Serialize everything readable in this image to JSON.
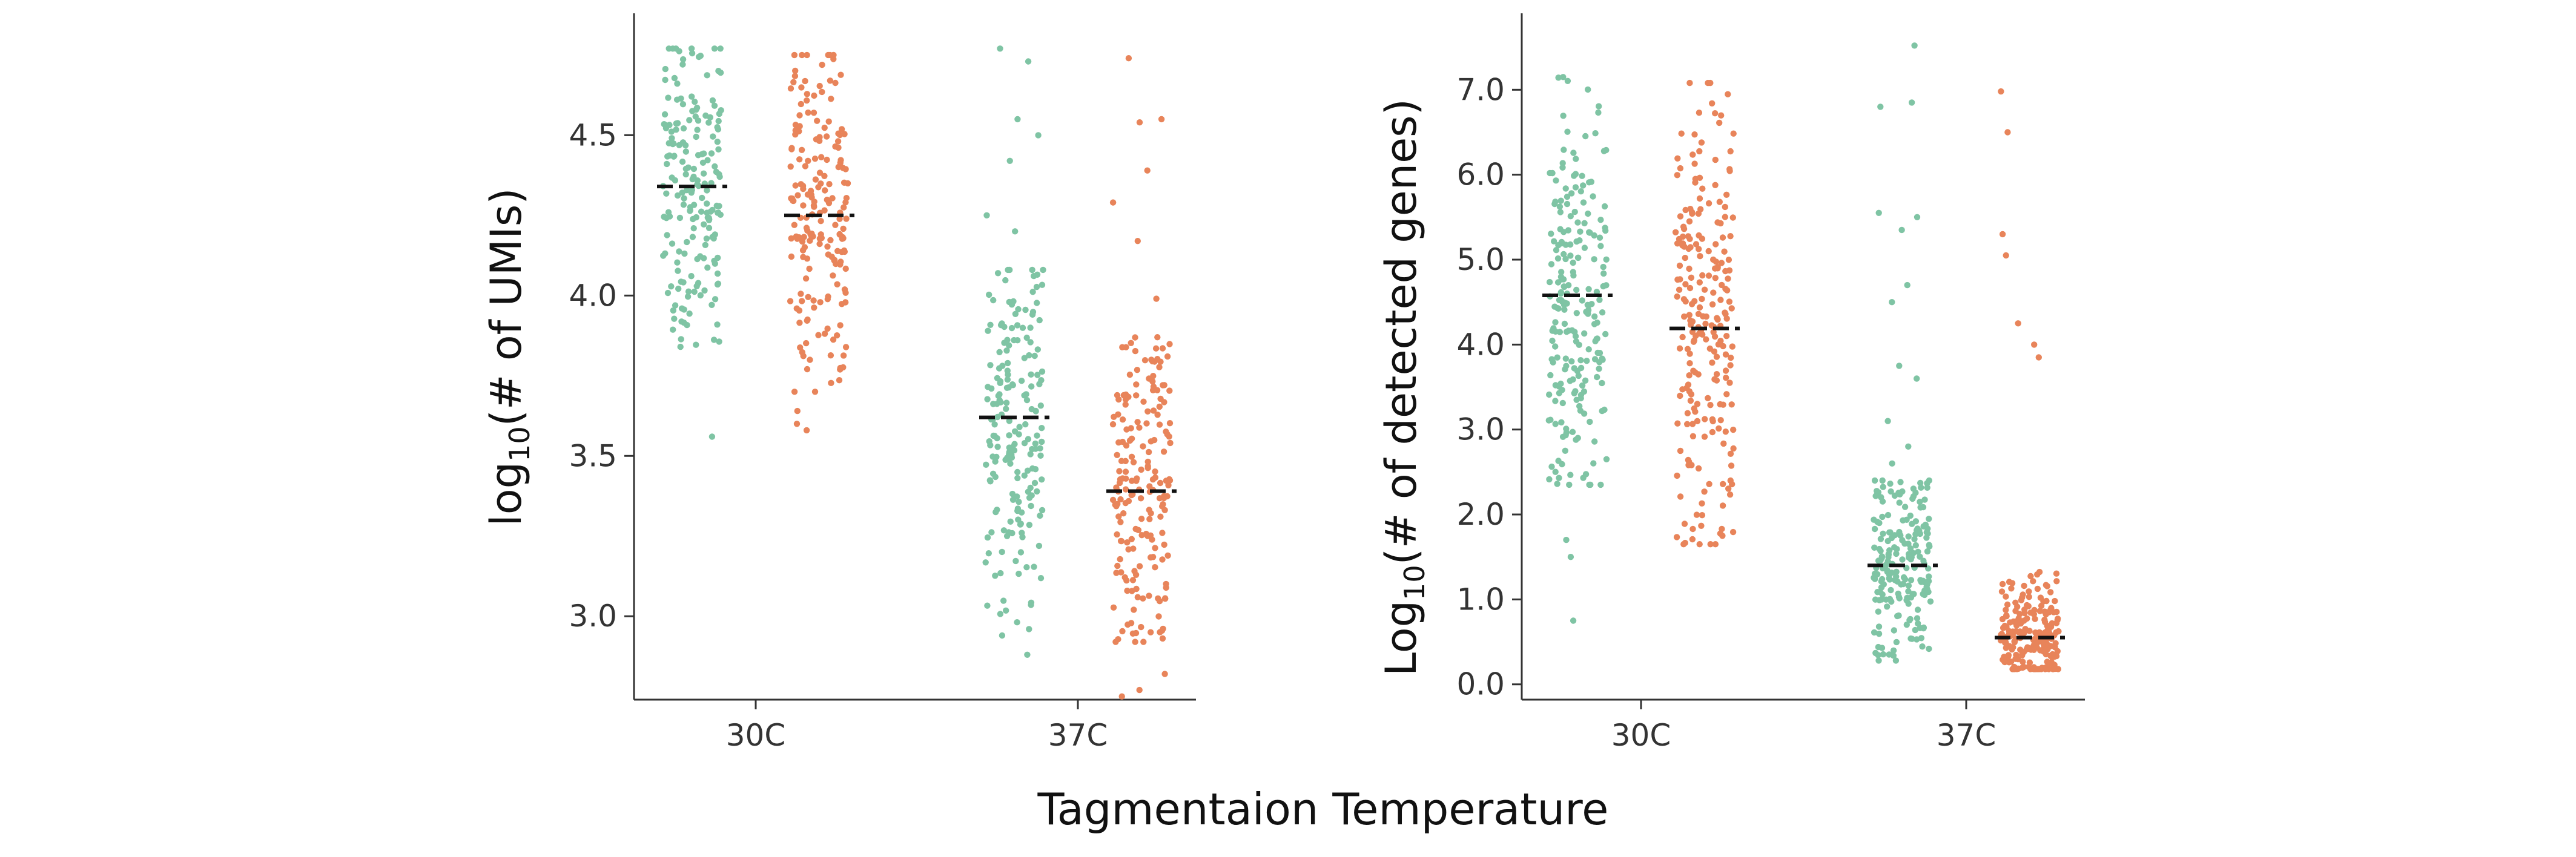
{
  "figure": {
    "xlabel": "Tagmentaion Temperature"
  },
  "colors": {
    "green": "#7fc4a4",
    "orange": "#e8845a",
    "median": "#111111",
    "axis": "#333333"
  },
  "chart_data": [
    {
      "type": "scatter",
      "subtype": "jitter-strip",
      "title": "",
      "ylabel": {
        "prefix": "log",
        "sub": "10",
        "suffix": "(# of UMIs)"
      },
      "ylim": [
        2.74,
        4.88
      ],
      "yticks": [
        3.0,
        3.5,
        4.0,
        4.5
      ],
      "ytick_labels": [
        "3.0",
        "3.5",
        "4.0",
        "4.5"
      ],
      "categories": [
        "30C",
        "37C"
      ],
      "groups": [
        {
          "category": "30C",
          "color": "green",
          "median": 4.34,
          "n": 190,
          "low": 3.84,
          "high": 4.77,
          "mid_low": 4.1,
          "mid_high": 4.55,
          "outliers_low": [
            3.56
          ]
        },
        {
          "category": "30C",
          "color": "orange",
          "median": 4.25,
          "n": 190,
          "low": 3.7,
          "high": 4.75,
          "mid_low": 4.0,
          "mid_high": 4.48,
          "outliers_low": [
            3.58,
            3.6,
            3.64
          ]
        },
        {
          "category": "37C",
          "color": "green",
          "median": 3.62,
          "n": 190,
          "low": 2.96,
          "high": 4.08,
          "mid_low": 3.4,
          "mid_high": 3.85,
          "outliers_low": [
            2.88,
            2.94
          ],
          "outliers_high": [
            4.2,
            4.25,
            4.42,
            4.5,
            4.55,
            4.73,
            4.77
          ]
        },
        {
          "category": "37C",
          "color": "orange",
          "median": 3.39,
          "n": 190,
          "low": 2.92,
          "high": 3.87,
          "mid_low": 3.18,
          "mid_high": 3.62,
          "outliers_low": [
            2.75,
            2.77,
            2.82
          ],
          "outliers_high": [
            3.99,
            4.17,
            4.29,
            4.39,
            4.54,
            4.55,
            4.74
          ]
        }
      ]
    },
    {
      "type": "scatter",
      "subtype": "jitter-strip",
      "title": "",
      "ylabel": {
        "prefix": "Log",
        "sub": "10",
        "suffix": "(# of detected genes)"
      },
      "ylim": [
        -0.18,
        7.9
      ],
      "yticks": [
        0.0,
        1.0,
        2.0,
        3.0,
        4.0,
        5.0,
        6.0,
        7.0
      ],
      "ytick_labels": [
        "0.0",
        "1.0",
        "2.0",
        "3.0",
        "4.0",
        "5.0",
        "6.0",
        "7.0"
      ],
      "categories": [
        "30C",
        "37C"
      ],
      "groups": [
        {
          "category": "30C",
          "color": "green",
          "median": 4.58,
          "n": 220,
          "low": 2.35,
          "high": 7.15,
          "mid_low": 3.6,
          "mid_high": 5.5,
          "outliers_low": [
            0.75,
            1.5,
            1.7
          ]
        },
        {
          "category": "30C",
          "color": "orange",
          "median": 4.19,
          "n": 230,
          "low": 1.65,
          "high": 7.08,
          "mid_low": 3.1,
          "mid_high": 5.3,
          "outliers_low": []
        },
        {
          "category": "37C",
          "color": "green",
          "median": 1.4,
          "n": 200,
          "low": 0.28,
          "high": 2.4,
          "mid_low": 0.9,
          "mid_high": 1.85,
          "outliers_high": [
            2.6,
            2.8,
            3.1,
            3.6,
            3.75,
            4.5,
            4.7,
            5.35,
            5.5,
            5.55,
            6.8,
            6.85,
            7.52
          ]
        },
        {
          "category": "37C",
          "color": "orange",
          "median": 0.55,
          "n": 210,
          "low": 0.18,
          "high": 1.35,
          "mid_low": 0.35,
          "mid_high": 0.85,
          "outliers_high": [
            3.85,
            4.0,
            4.25,
            5.05,
            5.3,
            6.5,
            6.98
          ]
        }
      ]
    }
  ]
}
